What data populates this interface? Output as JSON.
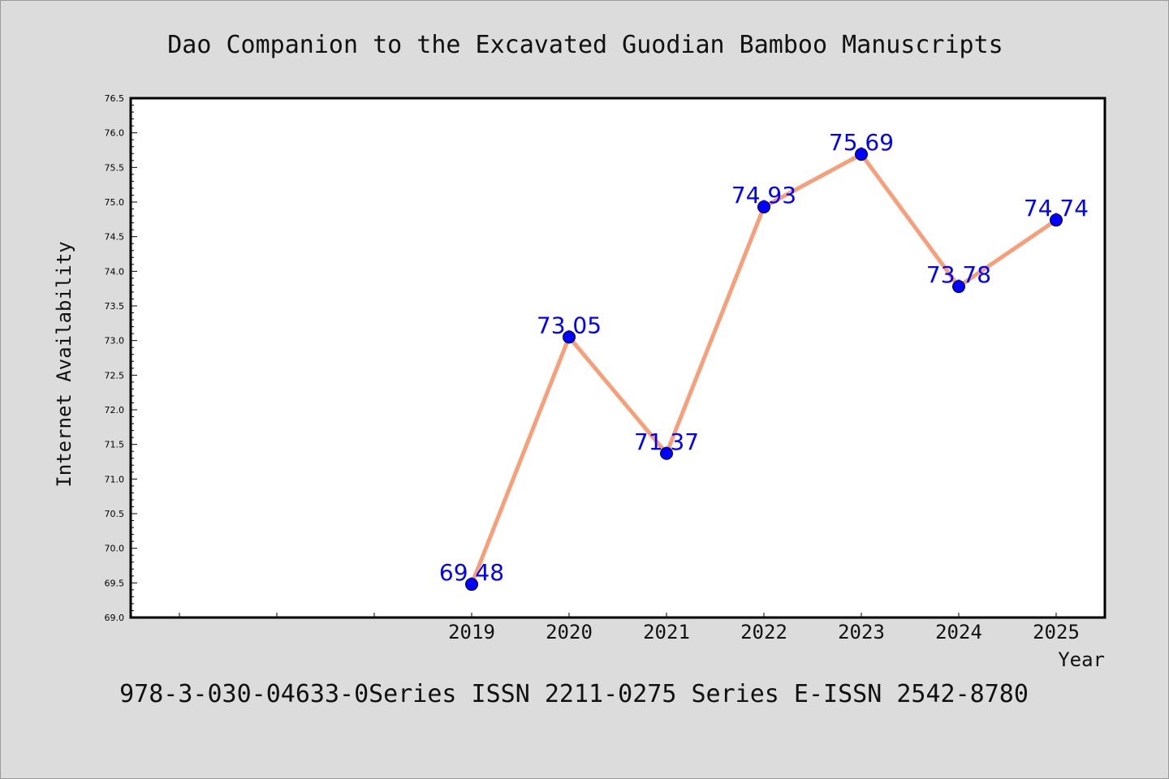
{
  "page": {
    "title": "Dao Companion to the Excavated Guodian Bamboo Manuscripts",
    "footer": "978-3-030-04633-0Series ISSN 2211-0275 Series E-ISSN 2542-8780"
  },
  "colors": {
    "background": "#dcdcdc",
    "plot_background": "#ffffff",
    "line": "#f5a07a",
    "marker": "#0000ff",
    "label": "#0000ff"
  },
  "chart_data": {
    "type": "line",
    "title": "Dao Companion to the Excavated Guodian Bamboo Manuscripts",
    "xlabel": "Year",
    "ylabel": "Internet Availability",
    "x": [
      "2019",
      "2020",
      "2021",
      "2022",
      "2023",
      "2024",
      "2025"
    ],
    "series": [
      {
        "values": [
          69.48,
          73.05,
          71.37,
          74.93,
          75.69,
          73.78,
          74.74
        ],
        "labels": [
          "69.48",
          "73.05",
          "71.37",
          "74.93",
          "75.69",
          "73.78",
          "74.74"
        ]
      }
    ],
    "ylim": [
      69.0,
      76.5
    ],
    "xlim": [
      2015.5,
      2025.5
    ],
    "yticks": [
      "69.0",
      "69.5",
      "70.0",
      "70.5",
      "71.0",
      "71.5",
      "72.0",
      "72.5",
      "73.0",
      "73.5",
      "74.0",
      "74.5",
      "75.0",
      "75.5",
      "76.0",
      "76.5"
    ],
    "grid": false,
    "legend": "none"
  }
}
